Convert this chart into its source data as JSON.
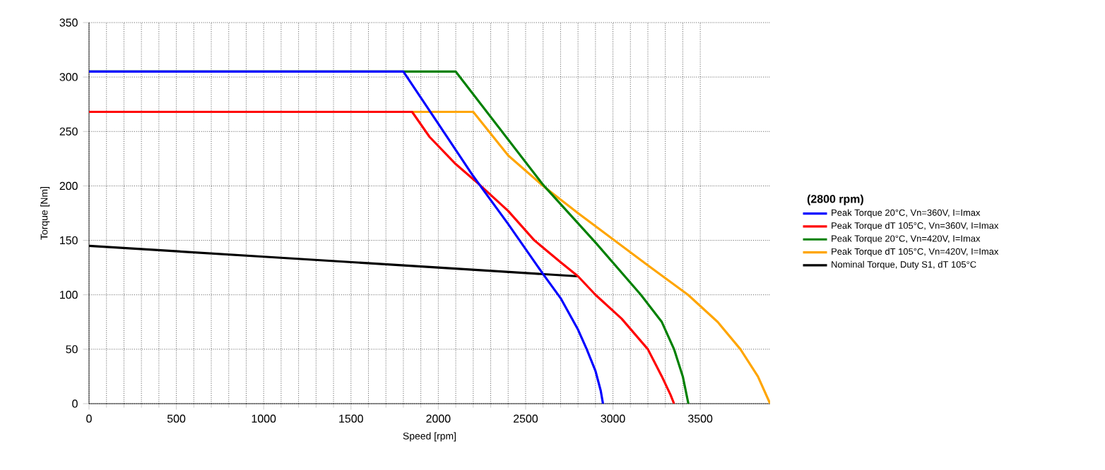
{
  "chart_data": {
    "type": "line",
    "xlabel": "Speed [rpm]",
    "ylabel": "Torque [Nm]",
    "legend_title": "(2800 rpm)",
    "xlim": [
      0,
      3900
    ],
    "ylim": [
      0,
      350
    ],
    "xticks": [
      0,
      500,
      1000,
      1500,
      2000,
      2500,
      3000,
      3500
    ],
    "yticks": [
      0,
      50,
      100,
      150,
      200,
      250,
      300,
      350
    ],
    "grid": true,
    "legend": "right",
    "marker": "none",
    "line_style": "solid",
    "series": [
      {
        "name": "Peak Torque 20°C, Vn=360V, I=Imax",
        "color": "#0000ff",
        "x": [
          0,
          1800,
          2000,
          2200,
          2400,
          2600,
          2700,
          2800,
          2850,
          2900,
          2930,
          2943
        ],
        "values": [
          305,
          305,
          257,
          209,
          165,
          119,
          97,
          68,
          50,
          30,
          12,
          0
        ]
      },
      {
        "name": "Peak Torque dT 105°C, Vn=360V, I=Imax",
        "color": "#ff0000",
        "x": [
          0,
          1850,
          1950,
          2100,
          2230,
          2400,
          2550,
          2700,
          2800,
          2900,
          3050,
          3200,
          3280,
          3330,
          3350
        ],
        "values": [
          268,
          268,
          245,
          220,
          202,
          177,
          150,
          130,
          117,
          100,
          78,
          50,
          25,
          8,
          0
        ]
      },
      {
        "name": "Peak Torque 20°C, Vn=420V, I=Imax",
        "color": "#008000",
        "x": [
          0,
          2100,
          2600,
          2900,
          3160,
          3280,
          3350,
          3400,
          3432
        ],
        "values": [
          305,
          305,
          201,
          148,
          100,
          75,
          50,
          25,
          0
        ]
      },
      {
        "name": "Peak Torque dT 105°C, Vn=420V, I=Imax",
        "color": "#ffa500",
        "x": [
          1850,
          2200,
          2400,
          2600,
          2800,
          3000,
          3200,
          3430,
          3600,
          3730,
          3830,
          3900
        ],
        "values": [
          268,
          268,
          228,
          200,
          175,
          151,
          127,
          100,
          75,
          50,
          25,
          0
        ]
      },
      {
        "name": "Nominal Torque, Duty S1, dT 105°C",
        "color": "#000000",
        "x": [
          0,
          1000,
          2000,
          2800
        ],
        "values": [
          145,
          135,
          125,
          117
        ]
      }
    ]
  }
}
